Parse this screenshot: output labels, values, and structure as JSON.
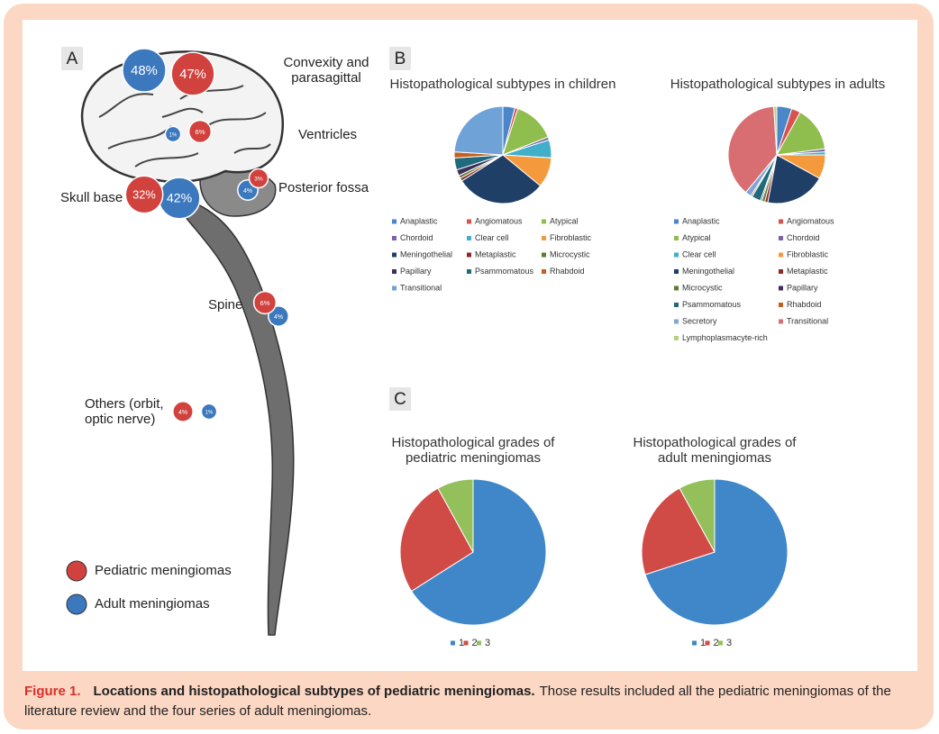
{
  "panel_labels": [
    "A",
    "B",
    "C"
  ],
  "panel_a": {
    "locations": [
      {
        "name": "Convexity and parasagittal",
        "pediatric": 47,
        "pediatric_label": "47%",
        "adult": 48,
        "adult_label": "48%"
      },
      {
        "name": "Ventricles",
        "pediatric": 6,
        "pediatric_label": "6%",
        "adult": 1,
        "adult_label": "1%"
      },
      {
        "name": "Posterior fossa",
        "pediatric": 3,
        "pediatric_label": "3%",
        "adult": 4,
        "adult_label": "4%"
      },
      {
        "name": "Skull base",
        "pediatric": 32,
        "pediatric_label": "32%",
        "adult": 42,
        "adult_label": "42%"
      },
      {
        "name": "Spine",
        "pediatric": 6,
        "pediatric_label": "6%",
        "adult": 4,
        "adult_label": "4%"
      },
      {
        "name": "Others (orbit, optic nerve)",
        "pediatric": 4,
        "pediatric_label": "4%",
        "adult": 1,
        "adult_label": "1%"
      }
    ],
    "legend": [
      {
        "name": "Pediatric meningiomas",
        "color": "#d1423e"
      },
      {
        "name": "Adult meningiomas",
        "color": "#3b78bd"
      }
    ]
  },
  "chart_data": [
    {
      "type": "pie",
      "title": "Histopathological subtypes in children",
      "categories": [
        "Anaplastic",
        "Angiomatous",
        "Atypical",
        "Chordoid",
        "Clear cell",
        "Fibroblastic",
        "Meningothelial",
        "Metaplastic",
        "Microcystic",
        "Papillary",
        "Psammomatous",
        "Rhabdoid",
        "Transitional"
      ],
      "values": [
        4,
        1,
        14,
        1,
        6,
        10,
        30,
        1,
        1,
        2,
        4,
        2,
        24
      ],
      "colors": [
        "#4a86c8",
        "#d9524f",
        "#8fbd4e",
        "#7b62a3",
        "#41afc9",
        "#f59a3c",
        "#1f3f67",
        "#8b2a26",
        "#5d7c2f",
        "#3d2f5a",
        "#1f6a7c",
        "#c55f1f",
        "#6fa3d8"
      ]
    },
    {
      "type": "pie",
      "title": "Histopathological subtypes in adults",
      "categories": [
        "Anaplastic",
        "Angiomatous",
        "Atypical",
        "Chordoid",
        "Clear cell",
        "Fibroblastic",
        "Meningothelial",
        "Metaplastic",
        "Microcystic",
        "Papillary",
        "Psammomatous",
        "Rhabdoid",
        "Secretory",
        "Transitional",
        "Lymphoplasmacyte-rich"
      ],
      "values": [
        5,
        3,
        15,
        1,
        1,
        8,
        20,
        1,
        1,
        0.5,
        3,
        0.5,
        2,
        38,
        1
      ],
      "colors": [
        "#4a86c8",
        "#d9524f",
        "#8fbd4e",
        "#7b62a3",
        "#41afc9",
        "#f59a3c",
        "#1f3f67",
        "#8b2a26",
        "#5d7c2f",
        "#3d2f5a",
        "#1f6a7c",
        "#c55f1f",
        "#7ea6d8",
        "#d96e72",
        "#b4d27f"
      ]
    },
    {
      "type": "pie",
      "title": "Histopathological grades of pediatric meningiomas",
      "categories": [
        "1",
        "2",
        "3"
      ],
      "values": [
        66,
        26,
        8
      ],
      "colors": [
        "#3f87c8",
        "#d14b46",
        "#93c05a"
      ]
    },
    {
      "type": "pie",
      "title": "Histopathological grades of adult meningiomas",
      "categories": [
        "1",
        "2",
        "3"
      ],
      "values": [
        70,
        22,
        8
      ],
      "colors": [
        "#3f87c8",
        "#d14b46",
        "#93c05a"
      ]
    }
  ],
  "caption": {
    "figure": "Figure 1.",
    "title": "Locations and histopathological subtypes of pediatric meningiomas.",
    "text": "Those results included all the pediatric meningiomas of the literature review and the four series of adult meningiomas."
  }
}
